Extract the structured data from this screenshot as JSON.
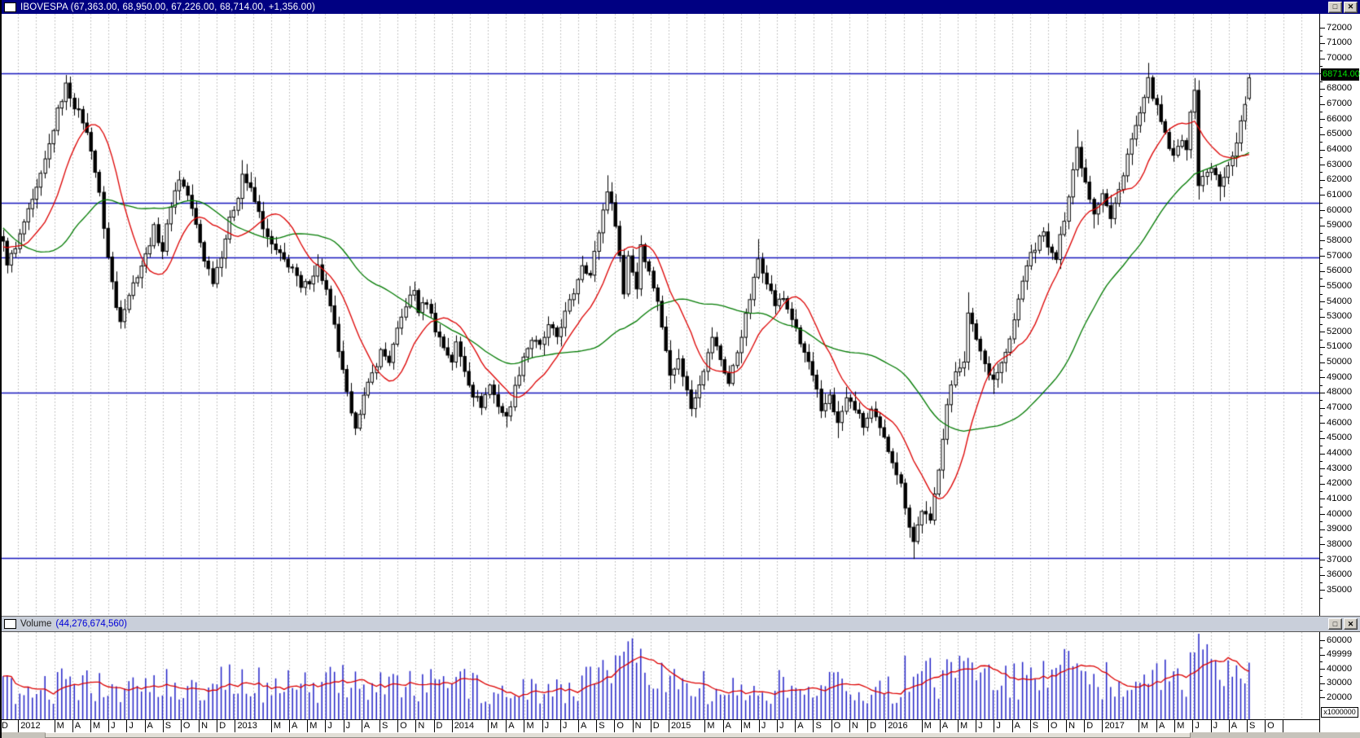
{
  "main_title": {
    "text": "IBOVESPA (67,363.00, 68,950.00, 67,226.00, 68,714.00, +1,356.00)",
    "maximize_glyph": "□",
    "close_glyph": "✕"
  },
  "volume_title": {
    "label": "Volume",
    "value": "(44,276,674,560)",
    "maximize_glyph": "□",
    "close_glyph": "✕"
  },
  "price_marker": {
    "text": "68714.00"
  },
  "price_axis": {
    "labels": [
      "72000",
      "71000",
      "70000",
      "69000",
      "68000",
      "67000",
      "66000",
      "65000",
      "64000",
      "63000",
      "62000",
      "61000",
      "60000",
      "59000",
      "58000",
      "57000",
      "56000",
      "55000",
      "54000",
      "53000",
      "52000",
      "51000",
      "50000",
      "49000",
      "48000",
      "47000",
      "46000",
      "45000",
      "44000",
      "43000",
      "42000",
      "41000",
      "40000",
      "39000",
      "38000",
      "37000",
      "36000",
      "35000"
    ]
  },
  "volume_axis": {
    "labels": [
      "60000",
      "49999",
      "40000",
      "30000",
      "20000"
    ],
    "minor_ticks": [
      55000,
      45000,
      35000,
      25000
    ],
    "multiplier": "x1000000"
  },
  "x_axis": {
    "cells": [
      {
        "t": "D",
        "s": 1
      },
      {
        "t": "2012",
        "s": 2
      },
      {
        "t": "M",
        "s": 1
      },
      {
        "t": "A",
        "s": 1
      },
      {
        "t": "M",
        "s": 1
      },
      {
        "t": "J",
        "s": 1
      },
      {
        "t": "J",
        "s": 1
      },
      {
        "t": "A",
        "s": 1
      },
      {
        "t": "S",
        "s": 1
      },
      {
        "t": "O",
        "s": 1
      },
      {
        "t": "N",
        "s": 1
      },
      {
        "t": "D",
        "s": 1
      },
      {
        "t": "2013",
        "s": 2
      },
      {
        "t": "M",
        "s": 1
      },
      {
        "t": "A",
        "s": 1
      },
      {
        "t": "M",
        "s": 1
      },
      {
        "t": "J",
        "s": 1
      },
      {
        "t": "J",
        "s": 1
      },
      {
        "t": "A",
        "s": 1
      },
      {
        "t": "S",
        "s": 1
      },
      {
        "t": "O",
        "s": 1
      },
      {
        "t": "N",
        "s": 1
      },
      {
        "t": "D",
        "s": 1
      },
      {
        "t": "2014",
        "s": 2
      },
      {
        "t": "M",
        "s": 1
      },
      {
        "t": "A",
        "s": 1
      },
      {
        "t": "M",
        "s": 1
      },
      {
        "t": "J",
        "s": 1
      },
      {
        "t": "J",
        "s": 1
      },
      {
        "t": "A",
        "s": 1
      },
      {
        "t": "S",
        "s": 1
      },
      {
        "t": "O",
        "s": 1
      },
      {
        "t": "N",
        "s": 1
      },
      {
        "t": "D",
        "s": 1
      },
      {
        "t": "2015",
        "s": 2
      },
      {
        "t": "M",
        "s": 1
      },
      {
        "t": "A",
        "s": 1
      },
      {
        "t": "M",
        "s": 1
      },
      {
        "t": "J",
        "s": 1
      },
      {
        "t": "J",
        "s": 1
      },
      {
        "t": "A",
        "s": 1
      },
      {
        "t": "S",
        "s": 1
      },
      {
        "t": "O",
        "s": 1
      },
      {
        "t": "N",
        "s": 1
      },
      {
        "t": "D",
        "s": 1
      },
      {
        "t": "2016",
        "s": 2
      },
      {
        "t": "M",
        "s": 1
      },
      {
        "t": "A",
        "s": 1
      },
      {
        "t": "M",
        "s": 1
      },
      {
        "t": "J",
        "s": 1
      },
      {
        "t": "J",
        "s": 1
      },
      {
        "t": "A",
        "s": 1
      },
      {
        "t": "S",
        "s": 1
      },
      {
        "t": "O",
        "s": 1
      },
      {
        "t": "N",
        "s": 1
      },
      {
        "t": "D",
        "s": 1
      },
      {
        "t": "2017",
        "s": 2
      },
      {
        "t": "M",
        "s": 1
      },
      {
        "t": "A",
        "s": 1
      },
      {
        "t": "M",
        "s": 1
      },
      {
        "t": "J",
        "s": 1
      },
      {
        "t": "J",
        "s": 1
      },
      {
        "t": "A",
        "s": 1
      },
      {
        "t": "S",
        "s": 1
      },
      {
        "t": "O",
        "s": 1
      },
      {
        "t": "",
        "s": 2
      }
    ]
  },
  "colors": {
    "titlebar_bg": "#000082",
    "titlebar_text": "#ffffff",
    "support_line": "#1414bd",
    "ma_fast": "#dd0000",
    "ma_slow": "#007a00",
    "candle_up": "#ffffff",
    "candle_down": "#000000",
    "candle_stroke": "#000000",
    "volume_bar": "#2323c8",
    "volume_ma": "#dd0000",
    "grid": "#b4b4b4",
    "marker_bg": "#000000",
    "marker_text": "#00e400"
  },
  "chart_data": {
    "type": "candlestick",
    "instrument": "IBOVESPA",
    "periodicity": "weekly",
    "x_range": {
      "start_label": "D (Dec 2011)",
      "end_label": "A (Aug 2017)",
      "weeks": 298
    },
    "title_ohlc": {
      "open": 67363,
      "high": 68950,
      "low": 67226,
      "close": 68714,
      "change": 1356
    },
    "last_volume_millions": 44277,
    "price_axis_top": 72000,
    "price_axis_bottom": 35000,
    "support_resistance": [
      69000,
      60500,
      56900,
      48000,
      37100
    ],
    "moving_averages": {
      "fast_period": 13,
      "fast_color": "red",
      "slow_period": 40,
      "slow_color": "green",
      "volume_ma_period": 10
    },
    "close_anchors": [
      [
        0,
        57800
      ],
      [
        1,
        56600
      ],
      [
        3,
        57400
      ],
      [
        5,
        59200
      ],
      [
        7,
        60500
      ],
      [
        9,
        62200
      ],
      [
        11,
        64300
      ],
      [
        13,
        66500
      ],
      [
        15,
        68200
      ],
      [
        17,
        66900
      ],
      [
        19,
        65900
      ],
      [
        21,
        64100
      ],
      [
        23,
        61000
      ],
      [
        25,
        56900
      ],
      [
        27,
        53600
      ],
      [
        28,
        52900
      ],
      [
        30,
        54500
      ],
      [
        32,
        55800
      ],
      [
        34,
        57000
      ],
      [
        36,
        58800
      ],
      [
        38,
        57400
      ],
      [
        40,
        60400
      ],
      [
        42,
        62100
      ],
      [
        44,
        61000
      ],
      [
        46,
        59000
      ],
      [
        48,
        56800
      ],
      [
        50,
        55400
      ],
      [
        52,
        57100
      ],
      [
        54,
        59300
      ],
      [
        56,
        61000
      ],
      [
        57,
        62400
      ],
      [
        59,
        61300
      ],
      [
        61,
        59800
      ],
      [
        63,
        58100
      ],
      [
        65,
        57300
      ],
      [
        67,
        56700
      ],
      [
        69,
        56200
      ],
      [
        71,
        54800
      ],
      [
        73,
        55400
      ],
      [
        75,
        56300
      ],
      [
        77,
        54700
      ],
      [
        79,
        52300
      ],
      [
        81,
        49300
      ],
      [
        83,
        46400
      ],
      [
        84,
        45900
      ],
      [
        86,
        47700
      ],
      [
        88,
        49200
      ],
      [
        90,
        50700
      ],
      [
        92,
        50100
      ],
      [
        94,
        52000
      ],
      [
        96,
        53800
      ],
      [
        98,
        54700
      ],
      [
        99,
        53400
      ],
      [
        101,
        54000
      ],
      [
        103,
        52200
      ],
      [
        105,
        51000
      ],
      [
        107,
        50100
      ],
      [
        108,
        51200
      ],
      [
        110,
        49500
      ],
      [
        112,
        47900
      ],
      [
        114,
        47200
      ],
      [
        116,
        48500
      ],
      [
        118,
        47200
      ],
      [
        120,
        46300
      ],
      [
        122,
        48300
      ],
      [
        124,
        50400
      ],
      [
        126,
        51500
      ],
      [
        128,
        51000
      ],
      [
        130,
        52300
      ],
      [
        132,
        51700
      ],
      [
        134,
        53200
      ],
      [
        136,
        54600
      ],
      [
        138,
        56500
      ],
      [
        140,
        55700
      ],
      [
        142,
        58600
      ],
      [
        144,
        61400
      ],
      [
        146,
        59200
      ],
      [
        147,
        57000
      ],
      [
        148,
        54500
      ],
      [
        149,
        57100
      ],
      [
        151,
        54900
      ],
      [
        152,
        57800
      ],
      [
        154,
        55900
      ],
      [
        156,
        54100
      ],
      [
        157,
        52200
      ],
      [
        159,
        49400
      ],
      [
        161,
        50100
      ],
      [
        162,
        49200
      ],
      [
        164,
        47000
      ],
      [
        166,
        48700
      ],
      [
        168,
        50500
      ],
      [
        169,
        51700
      ],
      [
        171,
        50200
      ],
      [
        173,
        48600
      ],
      [
        175,
        50700
      ],
      [
        177,
        53000
      ],
      [
        179,
        55400
      ],
      [
        180,
        56800
      ],
      [
        182,
        55400
      ],
      [
        184,
        53800
      ],
      [
        186,
        54200
      ],
      [
        188,
        52900
      ],
      [
        190,
        51200
      ],
      [
        192,
        50000
      ],
      [
        194,
        48000
      ],
      [
        195,
        46600
      ],
      [
        197,
        47900
      ],
      [
        199,
        45900
      ],
      [
        201,
        47600
      ],
      [
        203,
        47000
      ],
      [
        205,
        45800
      ],
      [
        207,
        46800
      ],
      [
        210,
        44900
      ],
      [
        212,
        43600
      ],
      [
        214,
        41900
      ],
      [
        216,
        39300
      ],
      [
        217,
        38200
      ],
      [
        219,
        40300
      ],
      [
        221,
        39400
      ],
      [
        223,
        43100
      ],
      [
        225,
        47200
      ],
      [
        227,
        49400
      ],
      [
        229,
        50200
      ],
      [
        230,
        53100
      ],
      [
        232,
        51600
      ],
      [
        234,
        49900
      ],
      [
        236,
        48900
      ],
      [
        238,
        49900
      ],
      [
        240,
        51400
      ],
      [
        242,
        54100
      ],
      [
        244,
        56500
      ],
      [
        246,
        57500
      ],
      [
        248,
        58800
      ],
      [
        249,
        57400
      ],
      [
        251,
        56800
      ],
      [
        253,
        59500
      ],
      [
        255,
        62700
      ],
      [
        256,
        64100
      ],
      [
        258,
        61900
      ],
      [
        260,
        59900
      ],
      [
        262,
        61200
      ],
      [
        264,
        59400
      ],
      [
        266,
        61300
      ],
      [
        268,
        63700
      ],
      [
        270,
        65500
      ],
      [
        272,
        67200
      ],
      [
        273,
        68500
      ],
      [
        275,
        66700
      ],
      [
        277,
        64900
      ],
      [
        279,
        63400
      ],
      [
        281,
        64800
      ],
      [
        282,
        64200
      ],
      [
        283,
        66200
      ],
      [
        284,
        68100
      ],
      [
        285,
        61700
      ],
      [
        287,
        62500
      ],
      [
        288,
        62900
      ],
      [
        290,
        61500
      ],
      [
        292,
        62800
      ],
      [
        294,
        64600
      ],
      [
        295,
        65800
      ],
      [
        296,
        67000
      ],
      [
        297,
        68714
      ]
    ],
    "forced_extremes": {
      "highs": {
        "15": 68900,
        "42": 62600,
        "57": 63300,
        "98": 55300,
        "144": 62300,
        "180": 58100,
        "230": 54600,
        "256": 65300,
        "273": 69700,
        "284": 68700
      },
      "lows": {
        "28": 52200,
        "84": 45200,
        "120": 45700,
        "159": 48200,
        "199": 45000,
        "217": 37050,
        "236": 47900,
        "260": 58800,
        "285": 60700,
        "290": 60600
      }
    },
    "volume_anchors_millions": [
      [
        0,
        25000
      ],
      [
        10,
        27000
      ],
      [
        20,
        29000
      ],
      [
        30,
        28000
      ],
      [
        42,
        28500
      ],
      [
        56,
        30000
      ],
      [
        70,
        27000
      ],
      [
        84,
        31000
      ],
      [
        98,
        28000
      ],
      [
        112,
        27500
      ],
      [
        126,
        26500
      ],
      [
        138,
        29000
      ],
      [
        144,
        34000
      ],
      [
        148,
        40000
      ],
      [
        150,
        60000
      ],
      [
        152,
        38000
      ],
      [
        156,
        32000
      ],
      [
        161,
        29000
      ],
      [
        170,
        26000
      ],
      [
        180,
        28500
      ],
      [
        190,
        26000
      ],
      [
        199,
        27500
      ],
      [
        207,
        24500
      ],
      [
        213,
        26000
      ],
      [
        215,
        36000
      ],
      [
        217,
        46000
      ],
      [
        219,
        35000
      ],
      [
        223,
        33000
      ],
      [
        227,
        36000
      ],
      [
        230,
        38000
      ],
      [
        234,
        32000
      ],
      [
        238,
        30000
      ],
      [
        242,
        32000
      ],
      [
        246,
        34000
      ],
      [
        250,
        35000
      ],
      [
        254,
        38000
      ],
      [
        256,
        42000
      ],
      [
        260,
        35000
      ],
      [
        264,
        31000
      ],
      [
        268,
        32000
      ],
      [
        272,
        35000
      ],
      [
        276,
        33000
      ],
      [
        280,
        31000
      ],
      [
        283,
        36000
      ],
      [
        285,
        57000
      ],
      [
        286,
        44000
      ],
      [
        288,
        36000
      ],
      [
        290,
        33000
      ],
      [
        292,
        32000
      ],
      [
        294,
        34000
      ],
      [
        296,
        37000
      ],
      [
        297,
        44277
      ]
    ],
    "prehistory_closes": [
      68000,
      67500,
      68300,
      67200,
      66400,
      66900,
      65800,
      64900,
      65600,
      64300,
      63100,
      63800,
      62500,
      61200,
      59800,
      56500,
      52300,
      49800,
      52500,
      54300,
      53100,
      51200,
      50100,
      52400,
      54200,
      55800,
      57300,
      58100,
      57200,
      56300,
      57100,
      57900,
      58600,
      57700,
      56700,
      57400,
      58100,
      58700,
      57300,
      57800
    ],
    "volume_axis_top": 60000,
    "volume_unit": 1000000,
    "grid": "monthly-dashed-vertical"
  }
}
